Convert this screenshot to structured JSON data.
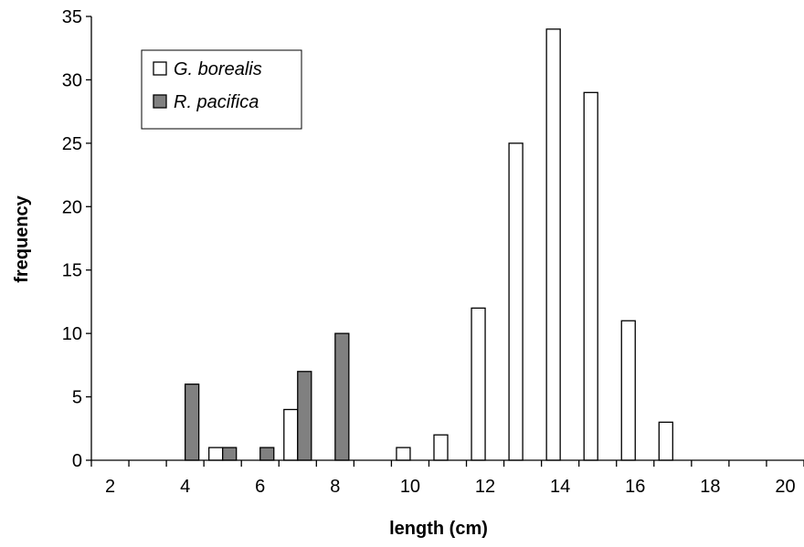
{
  "chart_data": {
    "type": "bar",
    "title": "",
    "xlabel": "length (cm)",
    "ylabel": "frequency",
    "xlim": [
      1.5,
      20.5
    ],
    "ylim": [
      0,
      35
    ],
    "x_ticks": [
      2,
      4,
      6,
      8,
      10,
      12,
      14,
      16,
      18,
      20
    ],
    "y_ticks": [
      0,
      5,
      10,
      15,
      20,
      25,
      30,
      35
    ],
    "categories": [
      2,
      3,
      4,
      5,
      6,
      7,
      8,
      9,
      10,
      11,
      12,
      13,
      14,
      15,
      16,
      17,
      18,
      19,
      20
    ],
    "series": [
      {
        "name": "G. borealis",
        "color": "#ffffff",
        "values": [
          0,
          0,
          0,
          1,
          0,
          4,
          0,
          0,
          1,
          2,
          12,
          25,
          34,
          29,
          11,
          3,
          0,
          0,
          0
        ]
      },
      {
        "name": "R. pacifica",
        "color": "#808080",
        "values": [
          0,
          0,
          6,
          1,
          1,
          7,
          10,
          0,
          0,
          0,
          0,
          0,
          0,
          0,
          0,
          0,
          0,
          0,
          0
        ]
      }
    ],
    "legend_position": "top-left",
    "grid": false
  }
}
